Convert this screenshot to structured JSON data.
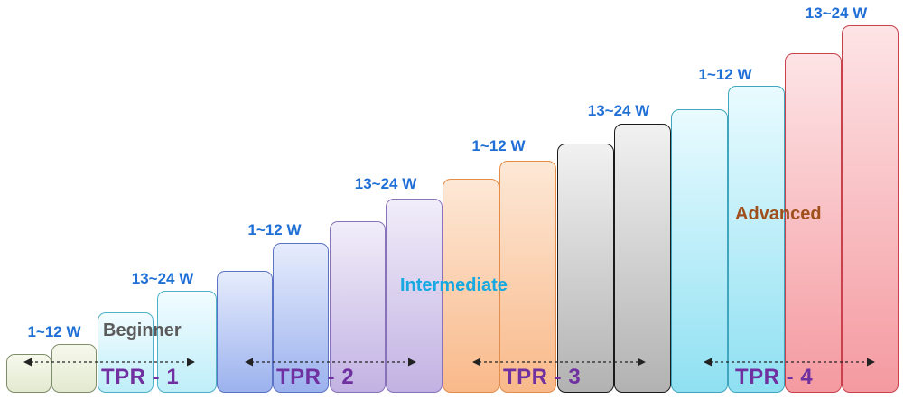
{
  "stages": [
    {
      "tpr": "TPR - 1",
      "level": "Beginner",
      "level_color": "#5b5b5b",
      "weeks": [
        "1~12 W",
        "13~24 W"
      ]
    },
    {
      "tpr": "TPR - 2",
      "level": "",
      "level_color": "",
      "weeks": [
        "1~12 W",
        "13~24 W"
      ]
    },
    {
      "tpr": "TPR - 3",
      "level": "Intermediate",
      "level_color": "#16a8e0",
      "weeks": [
        "1~12 W",
        "13~24 W"
      ]
    },
    {
      "tpr": "TPR - 4",
      "level": "Advanced",
      "level_color": "#a0501c",
      "weeks": [
        "1~12 W",
        "13~24 W"
      ]
    }
  ],
  "colors": {
    "week_label": "#1f6fd6",
    "tpr_label": "#7030a0"
  }
}
